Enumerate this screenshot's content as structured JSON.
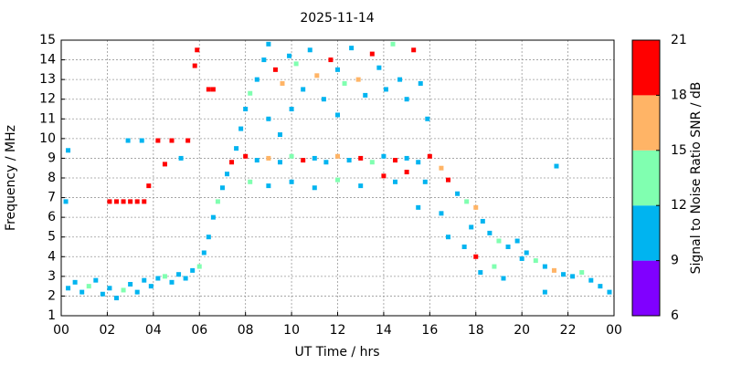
{
  "chart_data": {
    "type": "scatter",
    "title": "2025-11-14",
    "x_label": "UT Time / hrs",
    "y_label": "Frequency / MHz",
    "colorbar_label": "Signal to Noise Ratio SNR / dB",
    "xlim": [
      0,
      24
    ],
    "xticks": [
      {
        "value": 0,
        "label": "00"
      },
      {
        "value": 2,
        "label": "02"
      },
      {
        "value": 4,
        "label": "04"
      },
      {
        "value": 6,
        "label": "06"
      },
      {
        "value": 8,
        "label": "08"
      },
      10,
      12,
      14,
      16,
      18,
      20,
      22,
      {
        "value": 24,
        "label": "00"
      }
    ],
    "ylim": [
      1,
      15
    ],
    "yticks": [
      1,
      2,
      3,
      4,
      5,
      6,
      7,
      8,
      9,
      10,
      11,
      12,
      13,
      14,
      15
    ],
    "clim": [
      6,
      21
    ],
    "cticks": [
      6,
      9,
      12,
      15,
      18,
      21
    ],
    "colors": [
      "#8000ff",
      "#00b4f0",
      "#80ffb0",
      "#ffb466",
      "#ff0000"
    ],
    "grid": true,
    "x": [
      0.3,
      0.6,
      0.9,
      1.2,
      1.5,
      1.8,
      2.1,
      2.4,
      2.7,
      3.0,
      3.3,
      3.6,
      3.9,
      4.2,
      4.5,
      4.8,
      5.1,
      5.4,
      5.7,
      6.0,
      2.1,
      2.4,
      2.7,
      3.0,
      3.3,
      3.6,
      2.9,
      3.5,
      4.2,
      4.8,
      5.5,
      4.5,
      5.2,
      3.8,
      5.9,
      6.4,
      6.6,
      5.8,
      0.3,
      0.2,
      6.2,
      6.4,
      6.6,
      6.8,
      7.0,
      7.2,
      7.4,
      7.6,
      7.8,
      8.0,
      8.2,
      8.5,
      8.8,
      9.0,
      9.3,
      9.6,
      9.9,
      10.2,
      10.5,
      10.8,
      11.1,
      11.4,
      11.7,
      12.0,
      12.3,
      12.6,
      12.9,
      13.2,
      13.5,
      13.8,
      14.1,
      14.4,
      14.7,
      15.0,
      15.3,
      15.6,
      15.9,
      9.0,
      10.0,
      12.0,
      8.0,
      8.5,
      9.0,
      9.5,
      10.0,
      10.5,
      11.0,
      11.5,
      12.0,
      12.5,
      13.0,
      13.5,
      14.0,
      14.5,
      15.0,
      15.5,
      16.0,
      16.5,
      16.8,
      15.8,
      8.2,
      9.0,
      10.0,
      11.0,
      12.0,
      13.0,
      14.0,
      14.5,
      15.0,
      9.5,
      17.2,
      17.6,
      18.0,
      18.3,
      18.6,
      19.0,
      19.4,
      19.8,
      20.2,
      20.6,
      21.0,
      21.4,
      21.8,
      22.2,
      22.6,
      23.0,
      23.4,
      23.8,
      18.2,
      19.2,
      17.5,
      18.0,
      18.8,
      20.0,
      21.0,
      17.8,
      16.5,
      16.8,
      15.5,
      21.5
    ],
    "values": [
      2.4,
      2.7,
      2.2,
      2.5,
      2.8,
      2.1,
      2.4,
      1.9,
      2.3,
      2.6,
      2.2,
      2.8,
      2.5,
      2.9,
      3.0,
      2.7,
      3.1,
      2.9,
      3.3,
      3.5,
      6.8,
      6.8,
      6.8,
      6.8,
      6.8,
      6.8,
      9.9,
      9.9,
      9.9,
      9.9,
      9.9,
      8.7,
      9.0,
      7.6,
      14.5,
      12.5,
      12.5,
      13.7,
      9.4,
      6.8,
      4.2,
      5.0,
      6.0,
      6.8,
      7.5,
      8.2,
      8.8,
      9.5,
      10.5,
      11.5,
      12.3,
      13.0,
      14.0,
      14.8,
      13.5,
      12.8,
      14.2,
      13.8,
      12.5,
      14.5,
      13.2,
      12.0,
      14.0,
      13.5,
      12.8,
      14.6,
      13.0,
      12.2,
      14.3,
      13.6,
      12.5,
      14.8,
      13.0,
      12.0,
      14.5,
      12.8,
      11.0,
      11.0,
      11.5,
      11.2,
      9.1,
      8.9,
      9.0,
      8.8,
      9.1,
      8.9,
      9.0,
      8.8,
      9.1,
      8.9,
      9.0,
      8.8,
      9.1,
      8.9,
      9.0,
      8.8,
      9.1,
      8.5,
      7.9,
      7.8,
      7.8,
      7.6,
      7.8,
      7.5,
      7.9,
      7.6,
      8.1,
      7.8,
      8.3,
      10.2,
      7.2,
      6.8,
      6.5,
      5.8,
      5.2,
      4.8,
      4.5,
      4.8,
      4.2,
      3.8,
      3.5,
      3.3,
      3.1,
      3.0,
      3.2,
      2.8,
      2.5,
      2.2,
      3.2,
      2.9,
      4.5,
      4.0,
      3.5,
      3.9,
      2.2,
      5.5,
      6.2,
      5.0,
      6.5,
      8.6
    ],
    "snr": [
      10,
      11,
      10,
      13,
      10,
      10,
      11,
      10,
      13,
      10,
      10,
      11,
      10,
      10,
      13,
      10,
      10,
      11,
      10,
      13,
      20,
      20,
      20,
      19,
      20,
      20,
      11,
      11,
      20,
      19,
      20,
      20,
      11,
      20,
      20,
      20,
      20,
      20,
      10,
      10,
      10,
      11,
      10,
      13,
      10,
      11,
      20,
      10,
      10,
      11,
      13,
      10,
      11,
      10,
      20,
      16,
      10,
      13,
      10,
      11,
      16,
      10,
      20,
      10,
      13,
      10,
      16,
      10,
      20,
      11,
      10,
      13,
      10,
      11,
      20,
      10,
      10,
      10,
      11,
      10,
      20,
      11,
      16,
      10,
      13,
      20,
      10,
      11,
      16,
      10,
      20,
      13,
      10,
      20,
      11,
      10,
      20,
      16,
      20,
      11,
      13,
      10,
      11,
      10,
      13,
      10,
      20,
      11,
      20,
      10,
      10,
      13,
      16,
      10,
      11,
      13,
      10,
      11,
      10,
      13,
      10,
      16,
      10,
      11,
      13,
      10,
      11,
      10,
      11,
      10,
      10,
      20,
      13,
      10,
      10,
      10,
      11,
      10,
      10,
      10
    ]
  }
}
